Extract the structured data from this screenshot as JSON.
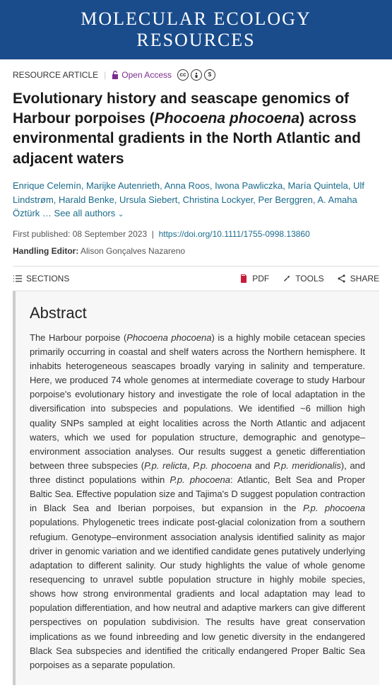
{
  "journal": {
    "line1": "MOLECULAR ECOLOGY",
    "line2": "RESOURCES"
  },
  "meta": {
    "article_type": "RESOURCE ARTICLE",
    "open_access": "Open Access"
  },
  "title_html": "Evolutionary history and seascape genomics of Harbour porpoises (<em>Phocoena phocoena</em>) across environmental gradients in the North Atlantic and adjacent waters",
  "authors": {
    "list": "Enrique Celemín, Marijke Autenrieth, Anna Roos, Iwona Pawliczka, María Quintela, Ulf Lindstrøm, Harald Benke, Ursula Siebert, Christina Lockyer, Per Berggren, A. Amaha Öztürk",
    "see_all": "… See all authors"
  },
  "pub": {
    "label": "First published:",
    "date": "08 September 2023",
    "doi": "https://doi.org/10.1111/1755-0998.13860"
  },
  "editor": {
    "label": "Handling Editor:",
    "name": "Alison Gonçalves Nazareno"
  },
  "toolbar": {
    "sections": "SECTIONS",
    "pdf": "PDF",
    "tools": "TOOLS",
    "share": "SHARE"
  },
  "abstract": {
    "heading": "Abstract",
    "body_html": "The Harbour porpoise (<em>Phocoena phocoena</em>) is a highly mobile cetacean species primarily occurring in coastal and shelf waters across the Northern hemisphere. It inhabits heterogeneous seascapes broadly varying in salinity and temperature. Here, we produced 74 whole genomes at intermediate coverage to study Harbour porpoise's evolutionary history and investigate the role of local adaptation in the diversification into subspecies and populations. We identified ~6 million high quality SNPs sampled at eight localities across the North Atlantic and adjacent waters, which we used for population structure, demographic and genotype–environment association analyses. Our results suggest a genetic differentiation between three subspecies (<em>P.p. relicta</em>, <em>P.p. phocoena</em> and <em>P.p. meridionalis</em>), and three distinct populations within <em>P.p. phocoena</em>: Atlantic, Belt Sea and Proper Baltic Sea. Effective population size and Tajima's D suggest population contraction in Black Sea and Iberian porpoises, but expansion in the <em>P.p. phocoena</em> populations. Phylogenetic trees indicate post-glacial colonization from a southern refugium. Genotype–environment association analysis identified salinity as major driver in genomic variation and we identified candidate genes putatively underlying adaptation to different salinity. Our study highlights the value of whole genome resequencing to unravel subtle population structure in highly mobile species, shows how strong environmental gradients and local adaptation may lead to population differentiation, and how neutral and adaptive markers can give different perspectives on population subdivision. The results have great conservation implications as we found inbreeding and low genetic diversity in the endangered Black Sea subspecies and identified the critically endangered Proper Baltic Sea porpoises as a separate population."
  },
  "colors": {
    "header_bg": "#1a4c8c",
    "link": "#1a6b8c",
    "open_access": "#7b2d8e",
    "pdf": "#c41e3a",
    "abstract_bg": "#f7f7f7"
  }
}
